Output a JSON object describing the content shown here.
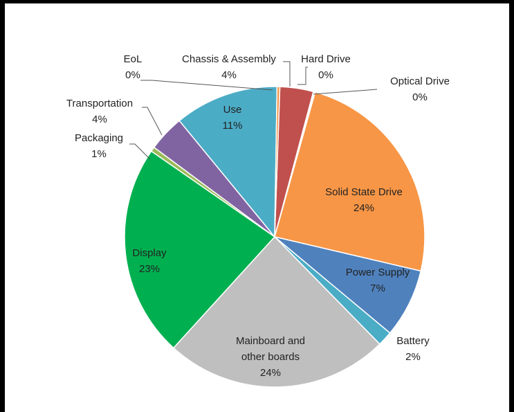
{
  "chart_data": {
    "type": "pie",
    "slices": [
      {
        "label": "Chassis & Assembly",
        "lines": [
          "Chassis & Assembly"
        ],
        "pct_label": "4%",
        "value": 3.6,
        "color": "#c0504d"
      },
      {
        "label": "Hard Drive",
        "lines": [
          "Hard Drive"
        ],
        "pct_label": "0%",
        "value": 0.1,
        "color": "#8b2a29"
      },
      {
        "label": "Optical Drive",
        "lines": [
          "Optical Drive"
        ],
        "pct_label": "0%",
        "value": 0.1,
        "color": "#c0504d"
      },
      {
        "label": "Solid State Drive",
        "lines": [
          "Solid State Drive"
        ],
        "pct_label": "24%",
        "value": 24.3,
        "color": "#f79646"
      },
      {
        "label": "Power Supply",
        "lines": [
          "Power Supply"
        ],
        "pct_label": "7%",
        "value": 7.4,
        "color": "#4f81bd"
      },
      {
        "label": "Battery",
        "lines": [
          "Battery"
        ],
        "pct_label": "2%",
        "value": 1.6,
        "color": "#4bacc6"
      },
      {
        "label": "Mainboard and other boards",
        "lines": [
          "Mainboard and",
          "other boards"
        ],
        "pct_label": "24%",
        "value": 24.1,
        "color": "#bfbfbf"
      },
      {
        "label": "Display",
        "lines": [
          "Display"
        ],
        "pct_label": "23%",
        "value": 22.9,
        "color": "#00b050"
      },
      {
        "label": "Packaging",
        "lines": [
          "Packaging"
        ],
        "pct_label": "1%",
        "value": 0.5,
        "color": "#9bbb59"
      },
      {
        "label": "Transportation",
        "lines": [
          "Transportation"
        ],
        "pct_label": "4%",
        "value": 3.9,
        "color": "#8064a2"
      },
      {
        "label": "Use",
        "lines": [
          "Use"
        ],
        "pct_label": "11%",
        "value": 11.2,
        "color": "#4bacc6"
      },
      {
        "label": "EoL",
        "lines": [
          "EoL"
        ],
        "pct_label": "0%",
        "value": 0.3,
        "color": "#f79646"
      }
    ],
    "legend": "none",
    "data_labels": "category name and percentage"
  }
}
